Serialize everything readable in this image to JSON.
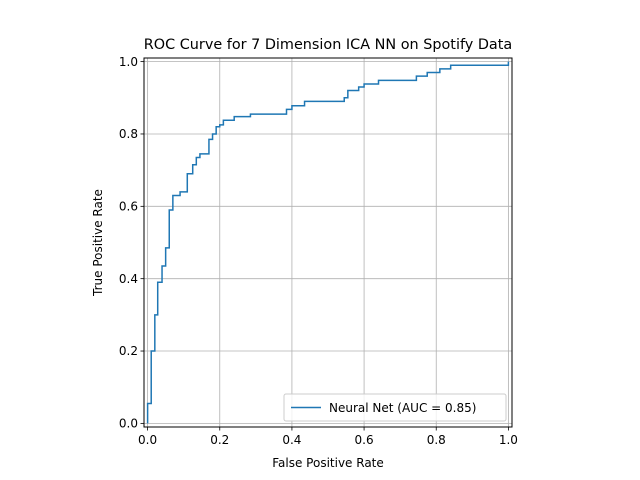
{
  "chart_data": {
    "type": "line",
    "title": "ROC Curve for 7 Dimension ICA NN on Spotify Data",
    "xlabel": "False Positive Rate",
    "ylabel": "True Positive Rate",
    "xlim": [
      -0.01,
      1.01
    ],
    "ylim": [
      -0.01,
      1.01
    ],
    "xticks": [
      0.0,
      0.2,
      0.4,
      0.6,
      0.8,
      1.0
    ],
    "yticks": [
      0.0,
      0.2,
      0.4,
      0.6,
      0.8,
      1.0
    ],
    "xtick_labels": [
      "0.0",
      "0.2",
      "0.4",
      "0.6",
      "0.8",
      "1.0"
    ],
    "ytick_labels": [
      "0.0",
      "0.2",
      "0.4",
      "0.6",
      "0.8",
      "1.0"
    ],
    "grid": true,
    "legend_position": "lower right",
    "series": [
      {
        "name": "Neural Net (AUC = 0.85)",
        "color": "#1f77b4",
        "step": true,
        "points": [
          [
            0.0,
            0.0
          ],
          [
            0.0,
            0.055
          ],
          [
            0.01,
            0.055
          ],
          [
            0.01,
            0.2
          ],
          [
            0.02,
            0.2
          ],
          [
            0.02,
            0.3
          ],
          [
            0.028,
            0.3
          ],
          [
            0.028,
            0.39
          ],
          [
            0.04,
            0.39
          ],
          [
            0.04,
            0.435
          ],
          [
            0.05,
            0.435
          ],
          [
            0.05,
            0.485
          ],
          [
            0.06,
            0.485
          ],
          [
            0.06,
            0.59
          ],
          [
            0.07,
            0.59
          ],
          [
            0.07,
            0.63
          ],
          [
            0.09,
            0.63
          ],
          [
            0.09,
            0.64
          ],
          [
            0.11,
            0.64
          ],
          [
            0.11,
            0.69
          ],
          [
            0.125,
            0.69
          ],
          [
            0.125,
            0.715
          ],
          [
            0.135,
            0.715
          ],
          [
            0.135,
            0.735
          ],
          [
            0.145,
            0.735
          ],
          [
            0.145,
            0.745
          ],
          [
            0.17,
            0.745
          ],
          [
            0.17,
            0.785
          ],
          [
            0.18,
            0.785
          ],
          [
            0.18,
            0.8
          ],
          [
            0.19,
            0.8
          ],
          [
            0.19,
            0.82
          ],
          [
            0.2,
            0.82
          ],
          [
            0.2,
            0.825
          ],
          [
            0.21,
            0.825
          ],
          [
            0.21,
            0.838
          ],
          [
            0.24,
            0.838
          ],
          [
            0.24,
            0.848
          ],
          [
            0.285,
            0.848
          ],
          [
            0.285,
            0.855
          ],
          [
            0.385,
            0.855
          ],
          [
            0.385,
            0.868
          ],
          [
            0.4,
            0.868
          ],
          [
            0.4,
            0.878
          ],
          [
            0.435,
            0.878
          ],
          [
            0.435,
            0.89
          ],
          [
            0.545,
            0.89
          ],
          [
            0.545,
            0.9
          ],
          [
            0.555,
            0.9
          ],
          [
            0.555,
            0.92
          ],
          [
            0.585,
            0.92
          ],
          [
            0.585,
            0.93
          ],
          [
            0.6,
            0.93
          ],
          [
            0.6,
            0.938
          ],
          [
            0.64,
            0.938
          ],
          [
            0.64,
            0.948
          ],
          [
            0.745,
            0.948
          ],
          [
            0.745,
            0.96
          ],
          [
            0.775,
            0.96
          ],
          [
            0.775,
            0.97
          ],
          [
            0.81,
            0.97
          ],
          [
            0.81,
            0.98
          ],
          [
            0.84,
            0.98
          ],
          [
            0.84,
            0.99
          ],
          [
            1.0,
            0.99
          ],
          [
            1.0,
            1.0
          ]
        ]
      }
    ]
  }
}
